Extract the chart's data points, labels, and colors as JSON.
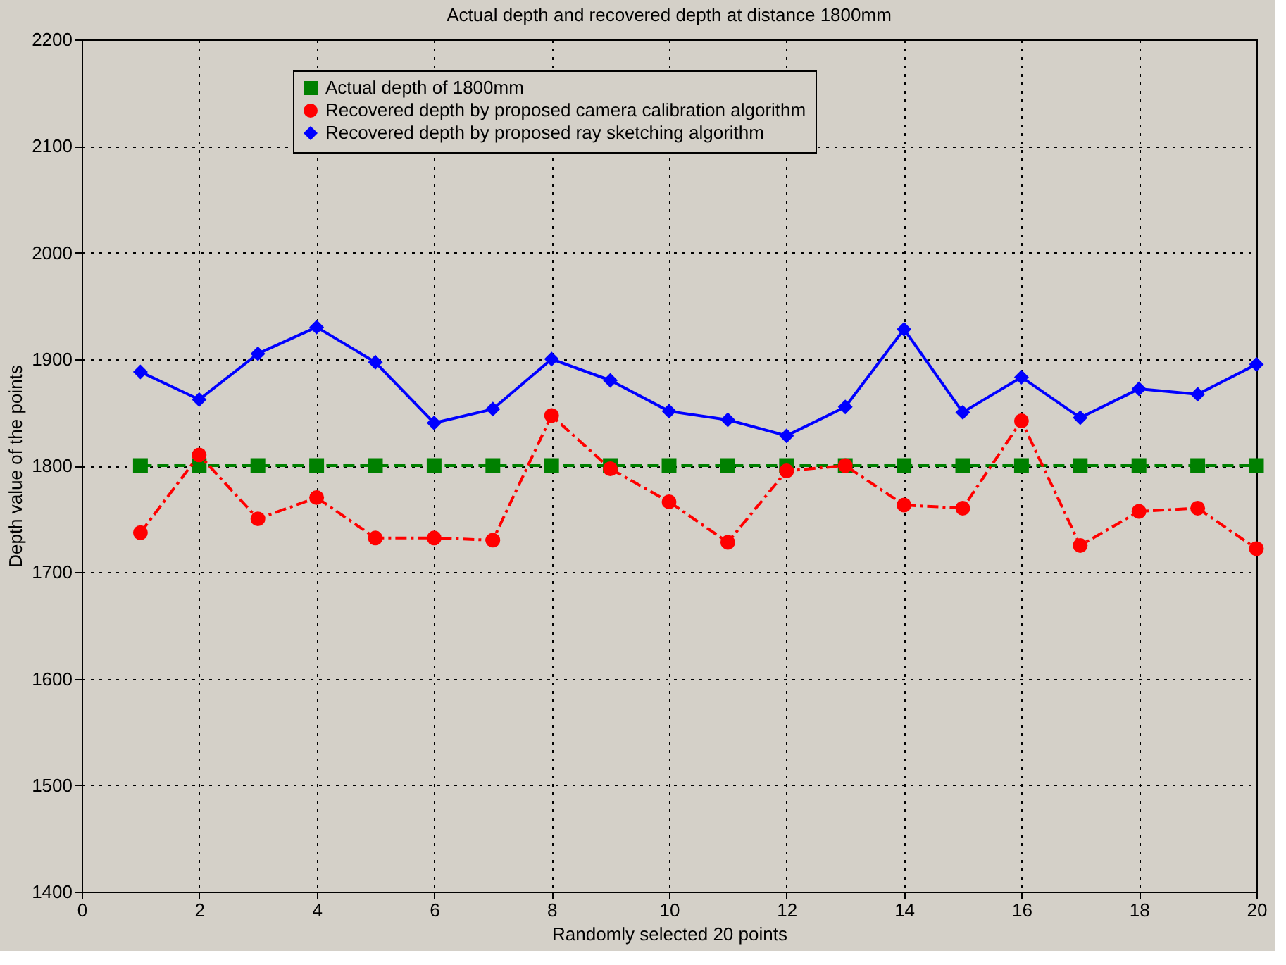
{
  "chart_data": {
    "type": "line",
    "title": "Actual depth and recovered depth at distance 1800mm",
    "xlabel": "Randomly selected 20 points",
    "ylabel": "Depth value of the points",
    "x": [
      1,
      2,
      3,
      4,
      5,
      6,
      7,
      8,
      9,
      10,
      11,
      12,
      13,
      14,
      15,
      16,
      17,
      18,
      19,
      20
    ],
    "series": [
      {
        "name": "Actual depth  of 1800mm",
        "color": "#008000",
        "marker": "square",
        "line_style": "dashed",
        "values": [
          1800,
          1800,
          1800,
          1800,
          1800,
          1800,
          1800,
          1800,
          1800,
          1800,
          1800,
          1800,
          1800,
          1800,
          1800,
          1800,
          1800,
          1800,
          1800,
          1800
        ]
      },
      {
        "name": "Recovered depth by proposed camera calibration algorithm",
        "color": "#ff0000",
        "marker": "circle",
        "line_style": "dashdot",
        "values": [
          1737,
          1810,
          1750,
          1770,
          1732,
          1732,
          1730,
          1847,
          1797,
          1766,
          1728,
          1795,
          1800,
          1763,
          1760,
          1842,
          1725,
          1757,
          1760,
          1722
        ]
      },
      {
        "name": "Recovered depth by proposed ray sketching algorithm",
        "color": "#0000ff",
        "marker": "diamond",
        "line_style": "solid",
        "values": [
          1888,
          1862,
          1905,
          1930,
          1897,
          1840,
          1853,
          1900,
          1880,
          1851,
          1843,
          1828,
          1855,
          1928,
          1850,
          1883,
          1845,
          1872,
          1867,
          1895
        ]
      }
    ],
    "xlim": [
      0,
      20
    ],
    "xticks": [
      0,
      2,
      4,
      6,
      8,
      10,
      12,
      14,
      16,
      18,
      20
    ],
    "ylim": [
      1400,
      2200
    ],
    "yticks": [
      1400,
      1500,
      1600,
      1700,
      1800,
      1900,
      2000,
      2100,
      2200
    ],
    "grid": true,
    "legend": "top"
  }
}
